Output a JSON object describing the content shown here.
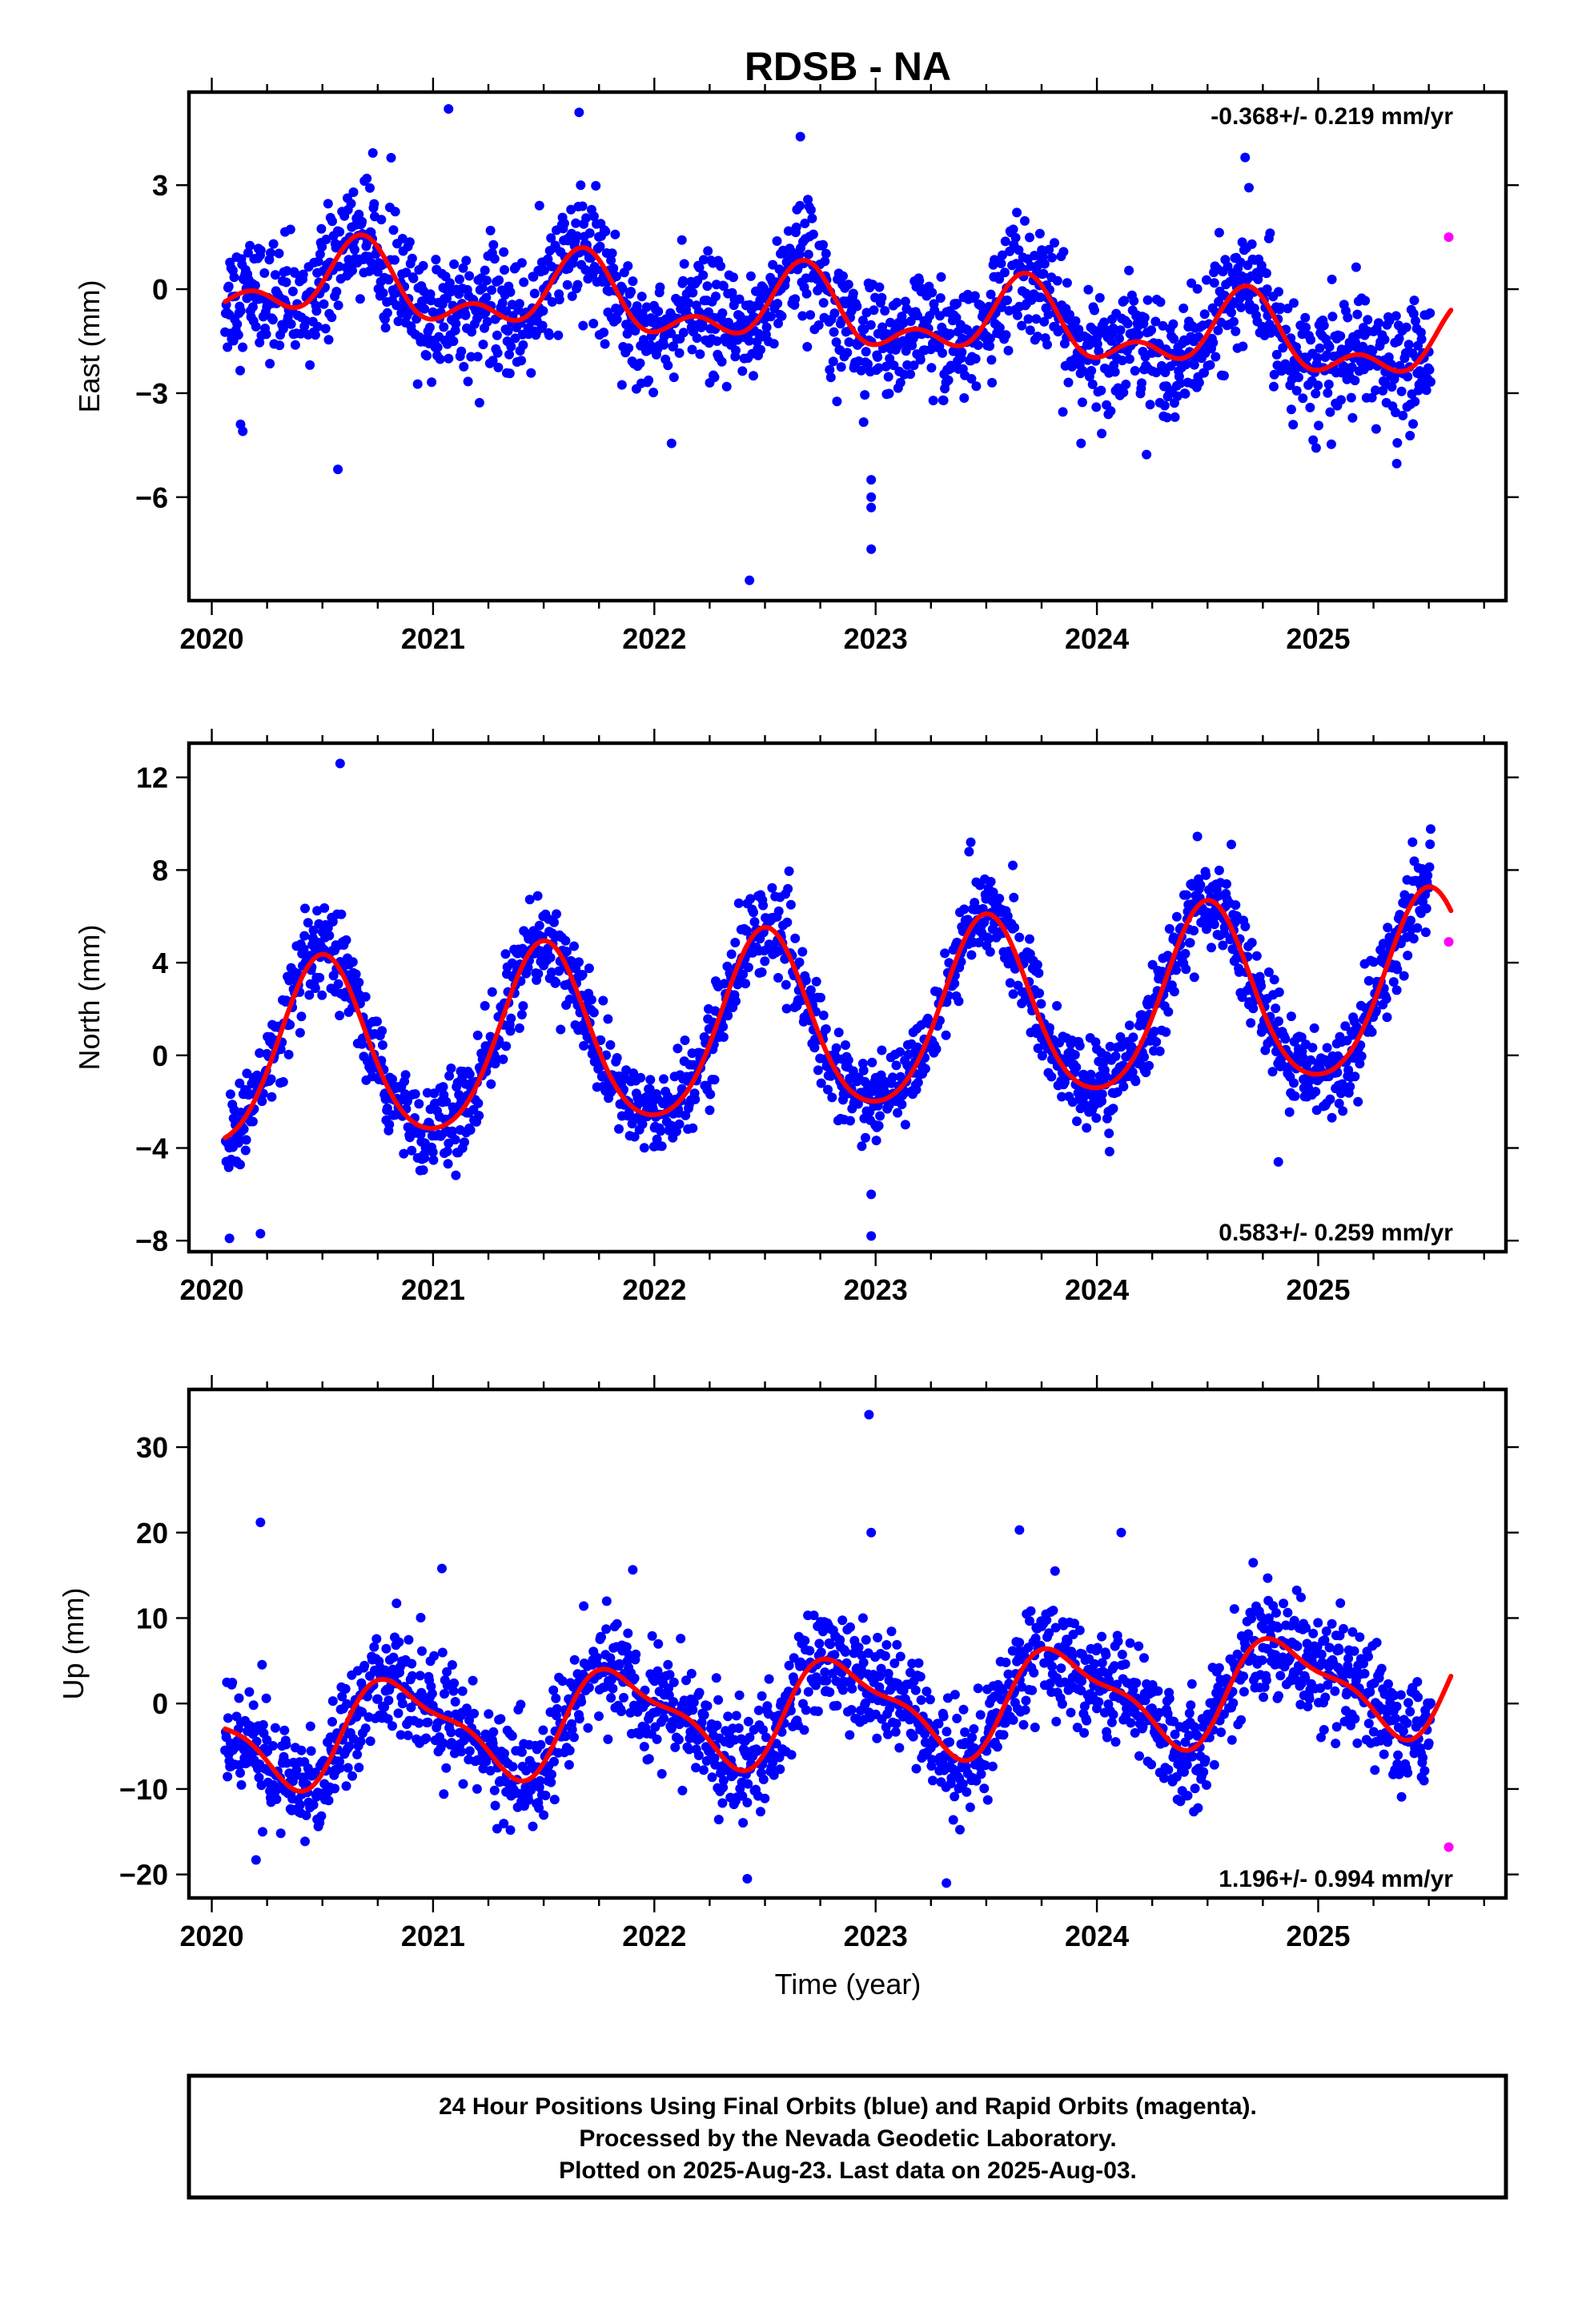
{
  "chart_data": {
    "type": "scatter",
    "title": "RDSB - NA",
    "xlabel": "Time (year)",
    "x_tick_labels": [
      "2020",
      "2021",
      "2022",
      "2023",
      "2024",
      "2025"
    ],
    "xlim": [
      2019.98,
      2025.74
    ],
    "colors": {
      "final": "#0000ff",
      "rapid": "#ff00ff",
      "model": "#ff0000"
    },
    "panels": [
      {
        "ylabel": "East (mm)",
        "ylim": [
          -8.8,
          5.5
        ],
        "yticks": [
          3,
          0,
          -3,
          -6
        ],
        "rate": "-0.368+/- 0.219 mm/yr",
        "rate_position": "top-right",
        "trend": {
          "start_year": 2020.05,
          "start_value": 0.3,
          "rate": -0.368
        },
        "annual": {
          "amplitude": 0.9,
          "peak_month_fraction": 0.67
        },
        "semiannual": {
          "amplitude": 0.6,
          "peak_month_fraction": 0.18
        },
        "scatter_sd": 0.85,
        "outliers": [
          [
            2020.13,
            -3.9
          ],
          [
            2020.14,
            -4.1
          ],
          [
            2020.57,
            -5.2
          ],
          [
            2021.07,
            5.2
          ],
          [
            2022.43,
            -8.4
          ],
          [
            2022.98,
            -5.5
          ],
          [
            2022.98,
            -6.3
          ],
          [
            2022.98,
            -7.5
          ],
          [
            2022.98,
            -6.0
          ],
          [
            2022.66,
            4.4
          ],
          [
            2021.66,
            5.1
          ],
          [
            2024.67,
            3.8
          ]
        ],
        "rapid_points": [
          [
            2025.59,
            1.5
          ]
        ]
      },
      {
        "ylabel": "North (mm)",
        "ylim": [
          -8.2,
          13.2
        ],
        "yticks": [
          12,
          8,
          4,
          0,
          -4,
          -8
        ],
        "rate": "0.583+/- 0.259 mm/yr",
        "rate_position": "bottom-right",
        "trend": {
          "start_year": 2020.05,
          "start_value": -0.3,
          "rate": 0.583
        },
        "annual": {
          "amplitude": 3.9,
          "peak_month_fraction": 0.5
        },
        "semiannual": {
          "amplitude": 0.5,
          "peak_month_fraction": 0.0
        },
        "scatter_sd": 0.95,
        "outliers": [
          [
            2020.58,
            12.6
          ],
          [
            2020.08,
            -7.9
          ],
          [
            2020.22,
            -7.7
          ],
          [
            2022.98,
            -7.8
          ],
          [
            2022.98,
            -6.0
          ],
          [
            2023.43,
            9.2
          ],
          [
            2023.62,
            8.2
          ],
          [
            2024.82,
            -4.6
          ],
          [
            2025.47,
            7.6
          ]
        ],
        "rapid_points": [
          [
            2025.59,
            4.9
          ]
        ]
      },
      {
        "ylabel": "Up (mm)",
        "ylim": [
          -22.0,
          36.0
        ],
        "yticks": [
          30,
          20,
          10,
          0,
          -10,
          -20
        ],
        "rate": "1.196+/- 0.994 mm/yr",
        "rate_position": "bottom-right",
        "trend": {
          "start_year": 2020.05,
          "start_value": -4.0,
          "rate": 1.196
        },
        "annual": {
          "amplitude": 5.5,
          "peak_month_fraction": 0.85
        },
        "semiannual": {
          "amplitude": 1.8,
          "peak_month_fraction": 0.7
        },
        "scatter_sd": 3.2,
        "outliers": [
          [
            2020.22,
            21.2
          ],
          [
            2022.97,
            33.8
          ],
          [
            2022.98,
            20.0
          ],
          [
            2023.65,
            20.3
          ],
          [
            2024.11,
            20.0
          ],
          [
            2021.04,
            15.8
          ],
          [
            2022.42,
            -20.5
          ],
          [
            2023.32,
            -21.0
          ],
          [
            2020.2,
            -18.3
          ]
        ],
        "rapid_points": [
          [
            2025.59,
            -16.8
          ]
        ]
      }
    ]
  },
  "caption": {
    "line1": "24 Hour Positions Using Final Orbits (blue) and Rapid Orbits (magenta).",
    "line2": "Processed by the Nevada Geodetic Laboratory.",
    "line3": "Plotted on 2025-Aug-23. Last data on 2025-Aug-03."
  }
}
